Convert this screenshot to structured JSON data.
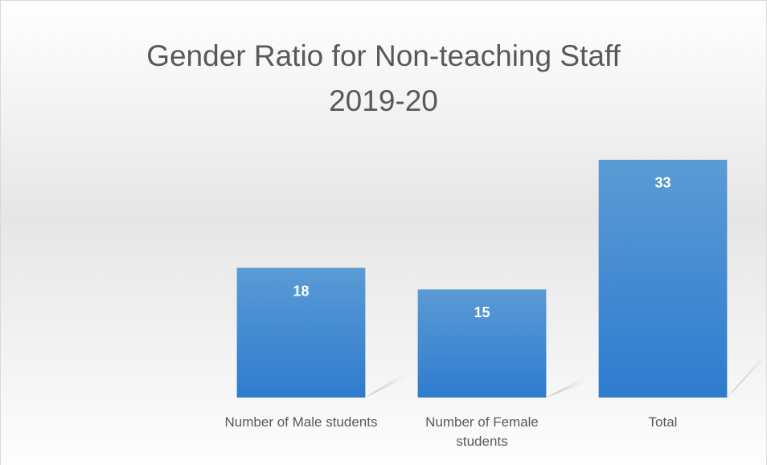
{
  "chart_data": {
    "type": "bar",
    "title": [
      "Gender Ratio for Non-teaching Staff",
      "2019-20"
    ],
    "categories": [
      null,
      "Number of Male students",
      "Number of Female students",
      "Total"
    ],
    "values": [
      null,
      18,
      15,
      33
    ],
    "color": "#4a8fd6",
    "ylim": [
      0,
      35
    ]
  }
}
